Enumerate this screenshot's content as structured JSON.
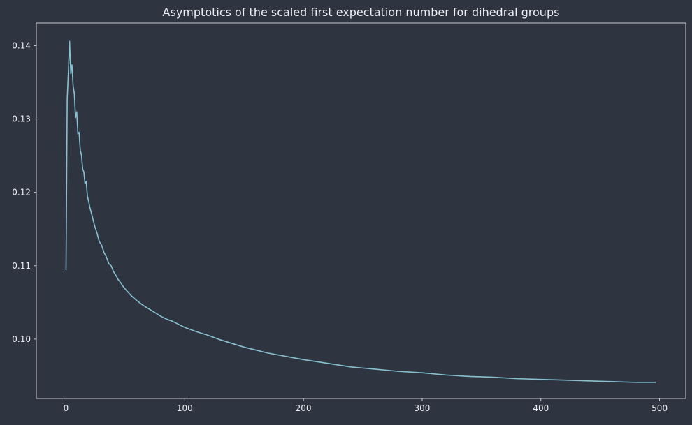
{
  "colors": {
    "background": "#2e3440",
    "axes_face": "#2e3440",
    "axes_edge": "#eceff4",
    "text": "#eceff4",
    "line": "#88c0d0"
  },
  "chart_data": {
    "type": "line",
    "title": "Asymptotics of the scaled first expectation number for dihedral groups",
    "xlabel": "",
    "ylabel": "",
    "xlim": [
      -25,
      522
    ],
    "ylim": [
      0.0919,
      0.1431
    ],
    "grid": false,
    "legend": "none",
    "xticks": [
      0,
      100,
      200,
      300,
      400,
      500
    ],
    "xtick_labels": [
      "0",
      "100",
      "200",
      "300",
      "400",
      "500"
    ],
    "yticks": [
      0.1,
      0.11,
      0.12,
      0.13,
      0.14
    ],
    "ytick_labels": [
      "0.10",
      "0.11",
      "0.12",
      "0.13",
      "0.14"
    ],
    "series": [
      {
        "name": "",
        "x": [
          0,
          1,
          2,
          3,
          4,
          5,
          6,
          7,
          8,
          9,
          10,
          11,
          12,
          13,
          14,
          15,
          16,
          17,
          18,
          19,
          20,
          22,
          24,
          26,
          28,
          30,
          32,
          34,
          36,
          38,
          40,
          42,
          44,
          46,
          48,
          50,
          55,
          60,
          65,
          70,
          75,
          80,
          85,
          90,
          100,
          110,
          120,
          130,
          140,
          150,
          160,
          170,
          180,
          190,
          200,
          220,
          240,
          260,
          280,
          300,
          320,
          340,
          360,
          380,
          400,
          420,
          440,
          460,
          480,
          497
        ],
        "y": [
          0.1094,
          0.1328,
          0.1365,
          0.1406,
          0.1362,
          0.1374,
          0.1345,
          0.1335,
          0.1302,
          0.131,
          0.128,
          0.1282,
          0.1258,
          0.1251,
          0.1232,
          0.1228,
          0.1212,
          0.1215,
          0.1195,
          0.1188,
          0.118,
          0.1168,
          0.1155,
          0.1145,
          0.1133,
          0.1128,
          0.1118,
          0.1112,
          0.1103,
          0.11,
          0.1092,
          0.1087,
          0.1081,
          0.1077,
          0.1072,
          0.1068,
          0.1059,
          0.1052,
          0.1046,
          0.1041,
          0.1036,
          0.1031,
          0.1027,
          0.1024,
          0.1016,
          0.101,
          0.1005,
          0.0999,
          0.0994,
          0.0989,
          0.0985,
          0.0981,
          0.0978,
          0.0975,
          0.0972,
          0.0967,
          0.0962,
          0.0959,
          0.0956,
          0.0954,
          0.0951,
          0.0949,
          0.0948,
          0.0946,
          0.0945,
          0.0944,
          0.0943,
          0.0942,
          0.0941,
          0.0941
        ]
      }
    ]
  }
}
